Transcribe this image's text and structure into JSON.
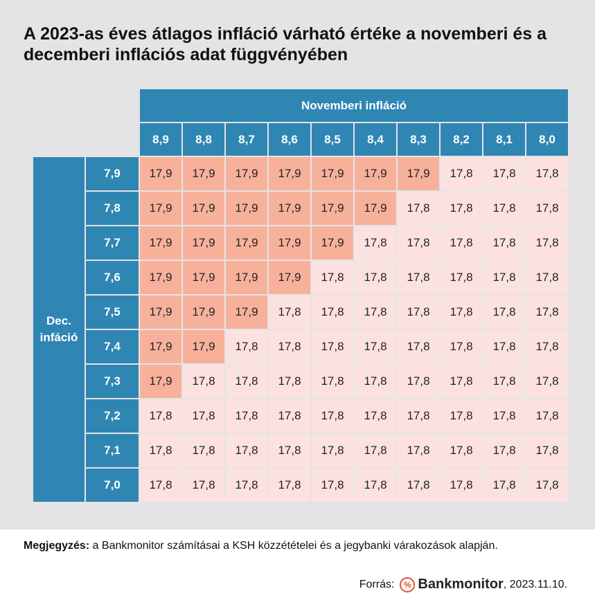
{
  "title": "A 2023-as éves átlagos infláció várható értéke a novemberi és a decemberi inflációs adat függvényében",
  "chart_data": {
    "type": "table",
    "column_header": "Novemberi infláció",
    "row_header": "Dec. infáció",
    "columns": [
      "8,9",
      "8,8",
      "8,7",
      "8,6",
      "8,5",
      "8,4",
      "8,3",
      "8,2",
      "8,1",
      "8,0"
    ],
    "rows": [
      "7,9",
      "7,8",
      "7,7",
      "7,6",
      "7,5",
      "7,4",
      "7,3",
      "7,2",
      "7,1",
      "7,0"
    ],
    "values": [
      [
        "17,9",
        "17,9",
        "17,9",
        "17,9",
        "17,9",
        "17,9",
        "17,9",
        "17,8",
        "17,8",
        "17,8"
      ],
      [
        "17,9",
        "17,9",
        "17,9",
        "17,9",
        "17,9",
        "17,9",
        "17,8",
        "17,8",
        "17,8",
        "17,8"
      ],
      [
        "17,9",
        "17,9",
        "17,9",
        "17,9",
        "17,9",
        "17,8",
        "17,8",
        "17,8",
        "17,8",
        "17,8"
      ],
      [
        "17,9",
        "17,9",
        "17,9",
        "17,9",
        "17,8",
        "17,8",
        "17,8",
        "17,8",
        "17,8",
        "17,8"
      ],
      [
        "17,9",
        "17,9",
        "17,9",
        "17,8",
        "17,8",
        "17,8",
        "17,8",
        "17,8",
        "17,8",
        "17,8"
      ],
      [
        "17,9",
        "17,9",
        "17,8",
        "17,8",
        "17,8",
        "17,8",
        "17,8",
        "17,8",
        "17,8",
        "17,8"
      ],
      [
        "17,9",
        "17,8",
        "17,8",
        "17,8",
        "17,8",
        "17,8",
        "17,8",
        "17,8",
        "17,8",
        "17,8"
      ],
      [
        "17,8",
        "17,8",
        "17,8",
        "17,8",
        "17,8",
        "17,8",
        "17,8",
        "17,8",
        "17,8",
        "17,8"
      ],
      [
        "17,8",
        "17,8",
        "17,8",
        "17,8",
        "17,8",
        "17,8",
        "17,8",
        "17,8",
        "17,8",
        "17,8"
      ],
      [
        "17,8",
        "17,8",
        "17,8",
        "17,8",
        "17,8",
        "17,8",
        "17,8",
        "17,8",
        "17,8",
        "17,8"
      ]
    ],
    "highlight_value": "17,9",
    "colors": {
      "header": "#2f86b3",
      "highlight": "#f7b19b",
      "default": "#fbe2e0",
      "background": "#e4e4e6"
    }
  },
  "footer": {
    "note_label": "Megjegyzés:",
    "note_text": " a Bankmonitor számításai a KSH közzétételei és a jegybanki várakozások alapján.",
    "source_label": "Forrás:",
    "logo_symbol": "%",
    "logo_text": "Bankmonitor",
    "date": ", 2023.11.10."
  }
}
